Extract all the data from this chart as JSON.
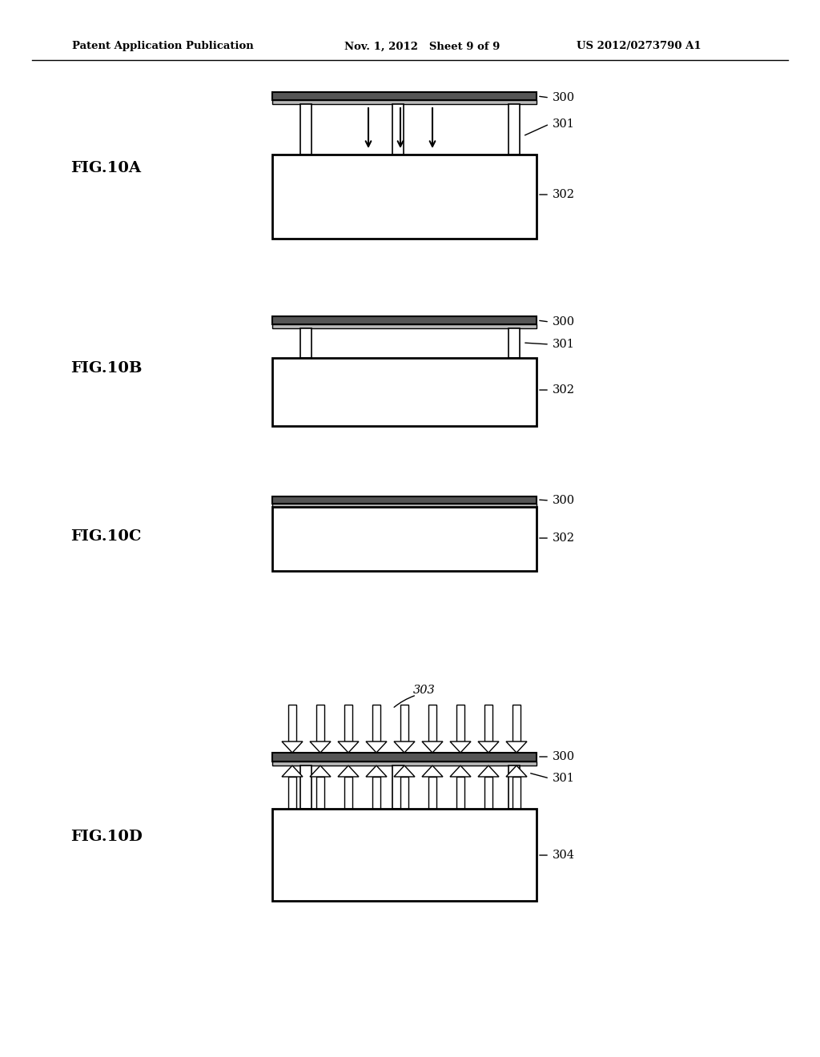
{
  "header_left": "Patent Application Publication",
  "header_mid": "Nov. 1, 2012   Sheet 9 of 9",
  "header_right": "US 2012/0273790 A1",
  "bg_color": "#ffffff",
  "line_color": "#000000"
}
